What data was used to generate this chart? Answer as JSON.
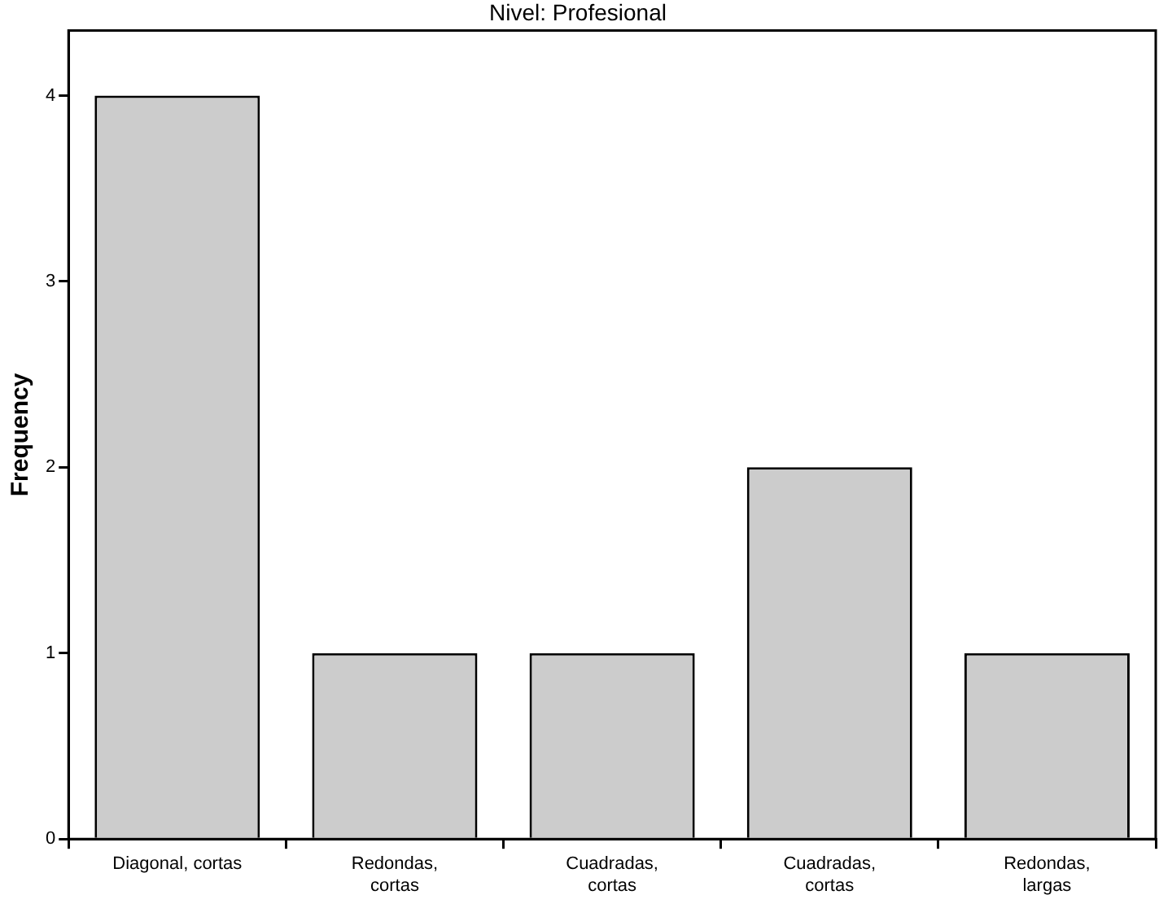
{
  "chart_data": {
    "type": "bar",
    "title": "Nivel: Profesional",
    "ylabel": "Frequency",
    "categories": [
      "Diagonal, cortas",
      "Redondas, cortas",
      "Cuadradas, cortas",
      "Cuadradas, cortas",
      "Redondas, largas"
    ],
    "values": [
      4,
      1,
      1,
      2,
      1
    ],
    "color": "#cccccc",
    "ylim": [
      0,
      4.35
    ],
    "yticks": [
      0,
      1,
      2,
      3,
      4
    ],
    "grid": false,
    "legend": false
  }
}
